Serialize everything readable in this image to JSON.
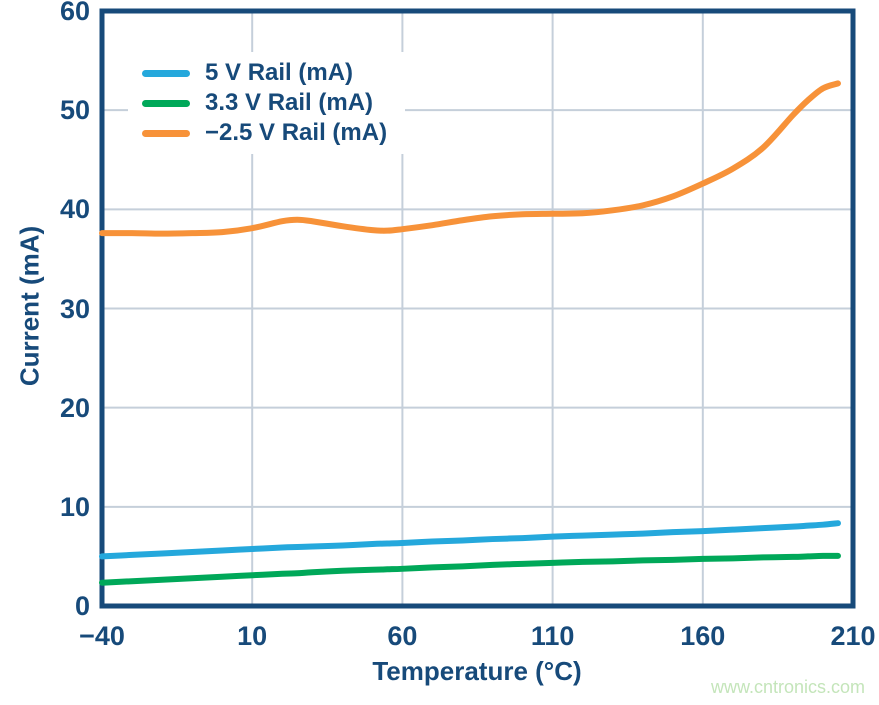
{
  "style": {
    "axis_color": "#174a7a",
    "grid_color": "#c5cfda",
    "background": "#ffffff"
  },
  "watermark": {
    "text": "www.cntronics.com",
    "color": "#c4e5ba"
  },
  "chart_data": {
    "type": "line",
    "title": "",
    "xlabel": "Temperature (°C)",
    "ylabel": "Current (mA)",
    "xlim": [
      -40,
      210
    ],
    "ylim": [
      0,
      60
    ],
    "xticks": [
      -40,
      10,
      60,
      110,
      160,
      210
    ],
    "xtick_labels": [
      "−40",
      "10",
      "60",
      "110",
      "160",
      "210"
    ],
    "yticks": [
      0,
      10,
      20,
      30,
      40,
      50,
      60
    ],
    "ytick_labels": [
      "0",
      "10",
      "20",
      "30",
      "40",
      "50",
      "60"
    ],
    "grid": true,
    "legend_position": "top-left",
    "x": [
      -40,
      -30,
      -20,
      -10,
      0,
      10,
      20,
      25,
      30,
      40,
      50,
      55,
      60,
      70,
      80,
      90,
      100,
      110,
      120,
      130,
      140,
      150,
      160,
      170,
      180,
      190,
      195,
      200,
      205
    ],
    "series": [
      {
        "name": "5 V Rail (mA)",
        "color": "#25a8dc",
        "values": [
          5.0,
          5.15,
          5.3,
          5.45,
          5.6,
          5.75,
          5.9,
          5.95,
          6.0,
          6.1,
          6.25,
          6.3,
          6.35,
          6.5,
          6.6,
          6.75,
          6.85,
          7.0,
          7.1,
          7.2,
          7.3,
          7.45,
          7.55,
          7.7,
          7.85,
          8.0,
          8.1,
          8.2,
          8.35
        ]
      },
      {
        "name": "3.3 V Rail (mA)",
        "color": "#00a859",
        "values": [
          2.35,
          2.5,
          2.65,
          2.8,
          2.95,
          3.1,
          3.25,
          3.3,
          3.4,
          3.55,
          3.65,
          3.7,
          3.75,
          3.9,
          4.0,
          4.15,
          4.25,
          4.35,
          4.45,
          4.5,
          4.6,
          4.65,
          4.75,
          4.8,
          4.9,
          4.95,
          5.0,
          5.05,
          5.05
        ]
      },
      {
        "name": "−2.5 V Rail (mA)",
        "color": "#f79239",
        "values": [
          37.6,
          37.6,
          37.55,
          37.6,
          37.7,
          38.1,
          38.8,
          38.95,
          38.8,
          38.3,
          37.9,
          37.85,
          38.0,
          38.4,
          38.9,
          39.3,
          39.5,
          39.55,
          39.6,
          39.9,
          40.4,
          41.3,
          42.6,
          44.1,
          46.2,
          49.5,
          51.0,
          52.2,
          52.7
        ]
      }
    ]
  }
}
